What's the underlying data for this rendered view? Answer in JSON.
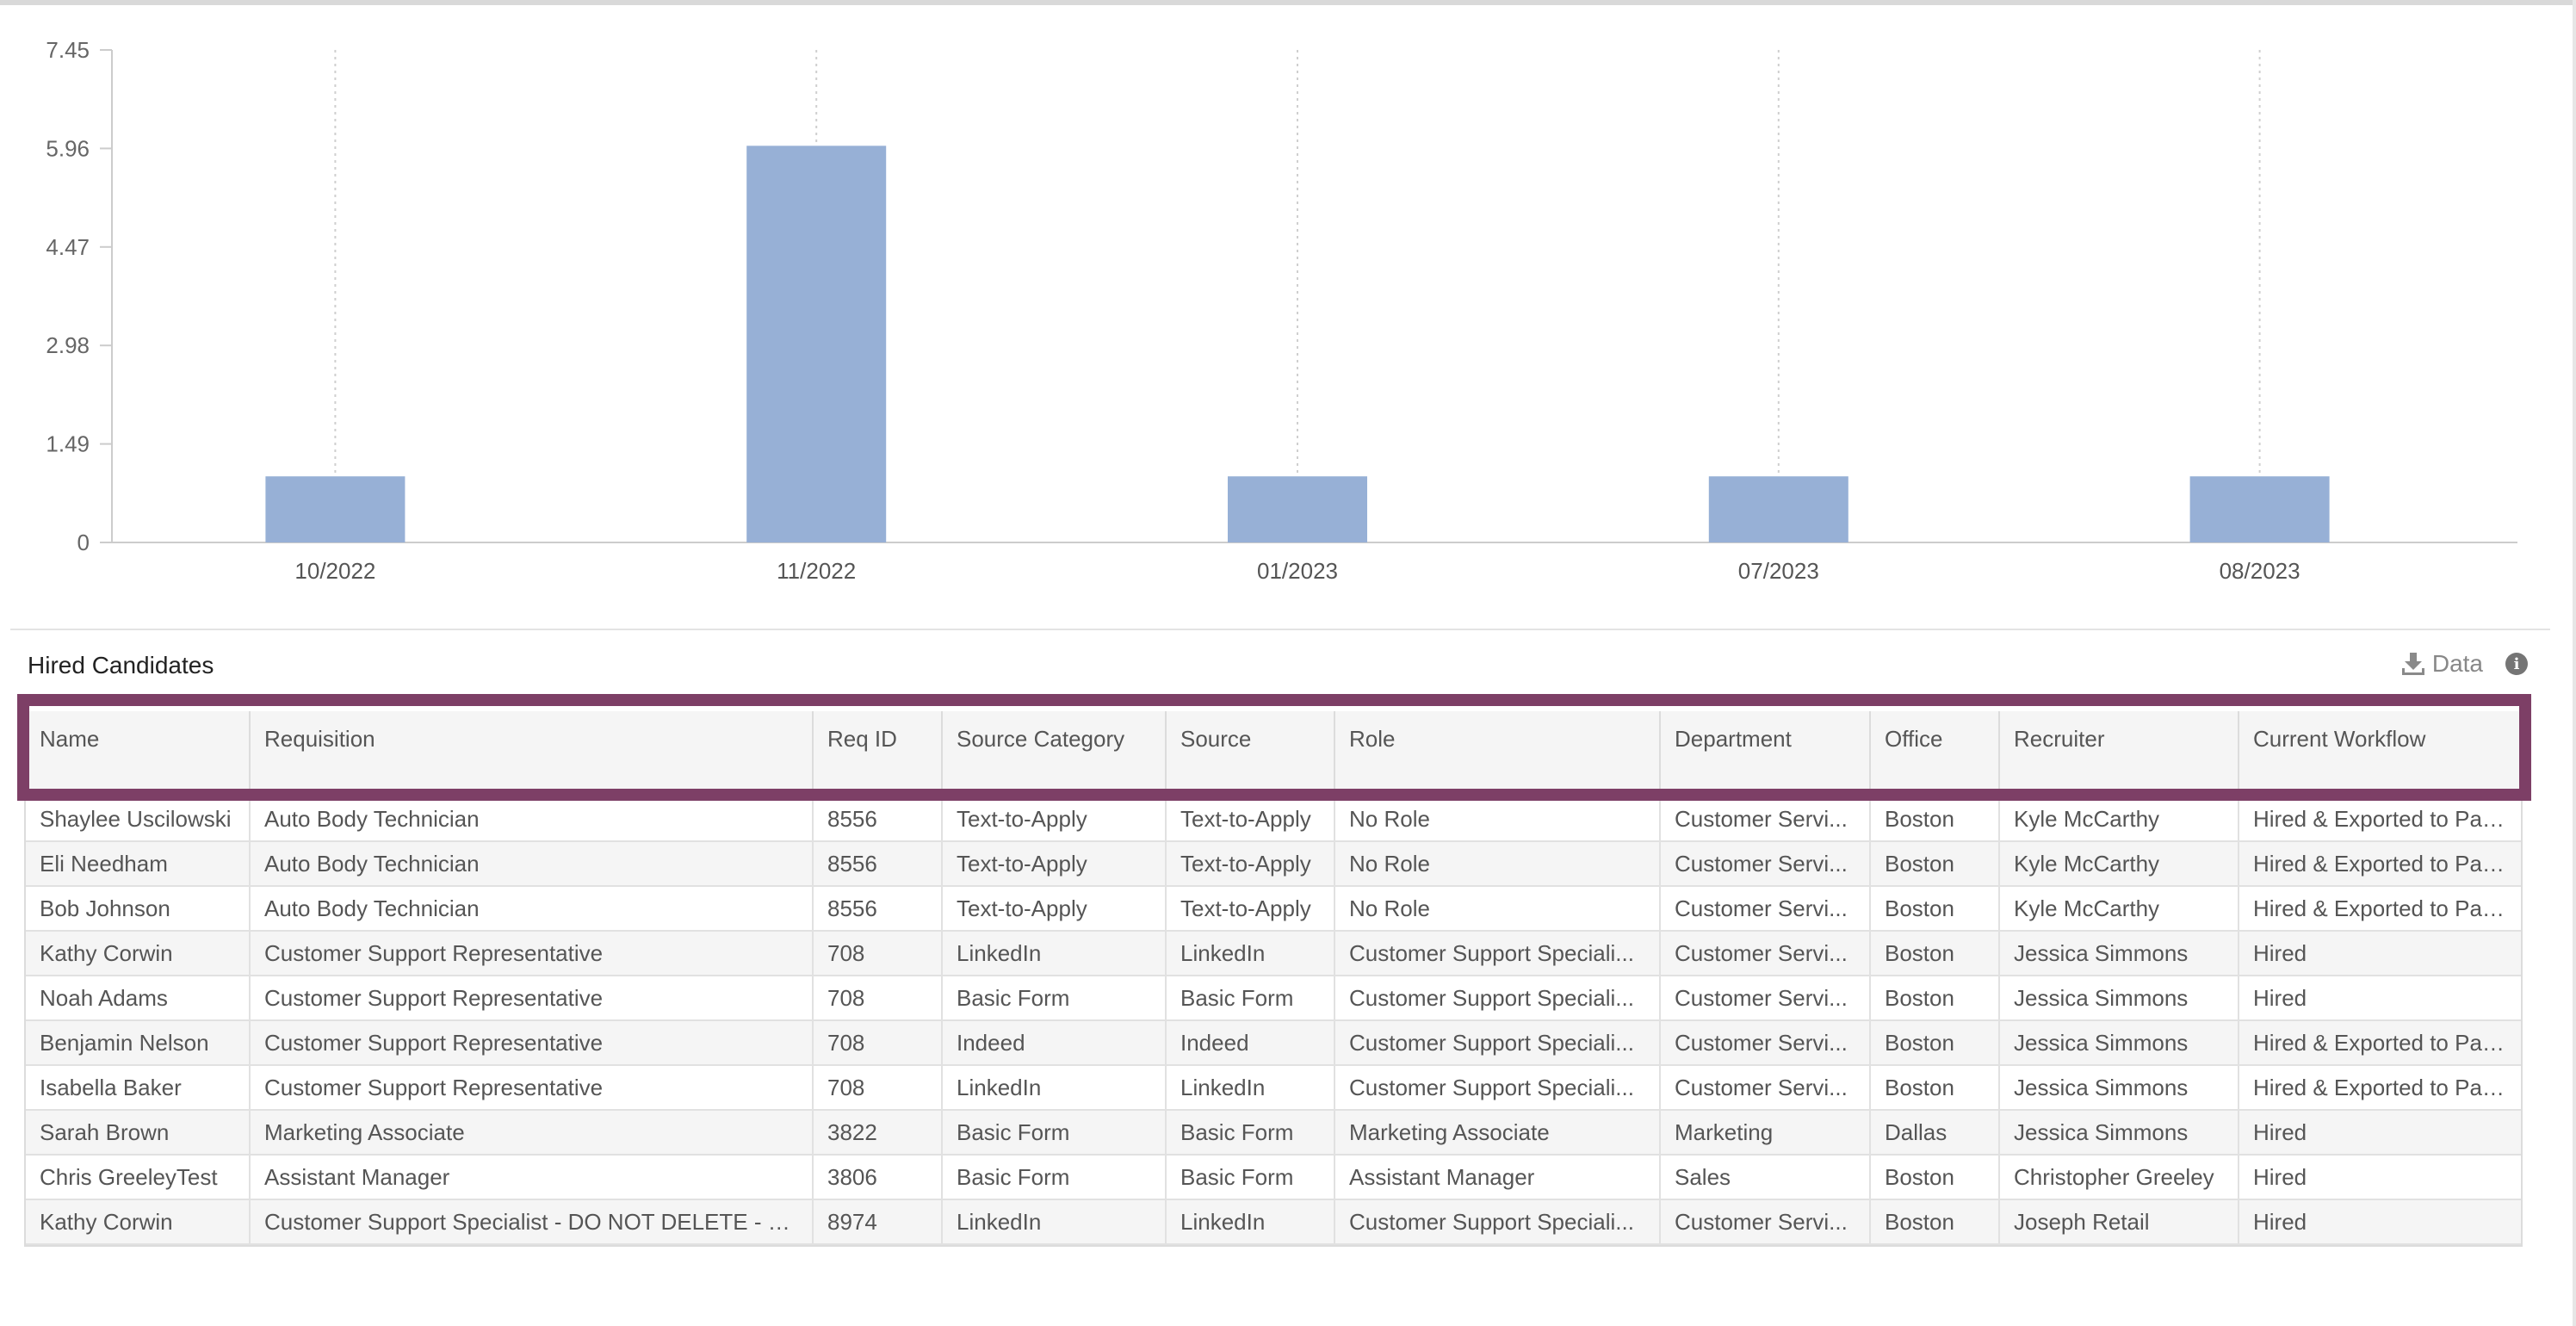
{
  "chart_data": {
    "type": "bar",
    "categories": [
      "10/2022",
      "11/2022",
      "01/2023",
      "07/2023",
      "08/2023"
    ],
    "values": [
      1,
      6,
      1,
      1,
      1
    ],
    "yticks": [
      "0",
      "1.49",
      "2.98",
      "4.47",
      "5.96",
      "7.45"
    ],
    "ylim": [
      0,
      7.45
    ],
    "grid": "vertical dotted",
    "bar_color": "#97b0d6"
  },
  "table": {
    "title": "Hired Candidates",
    "data_label": "Data",
    "columns": [
      "Name",
      "Requisition",
      "Req ID",
      "Source Category",
      "Source",
      "Role",
      "Department",
      "Office",
      "Recruiter",
      "Current Workflow"
    ],
    "rows": [
      [
        "Shaylee Uscilowski",
        "Auto Body Technician",
        "8556",
        "Text-to-Apply",
        "Text-to-Apply",
        "No Role",
        "Customer Servi...",
        "Boston",
        "Kyle McCarthy",
        "Hired & Exported to Payr..."
      ],
      [
        "Eli Needham",
        "Auto Body Technician",
        "8556",
        "Text-to-Apply",
        "Text-to-Apply",
        "No Role",
        "Customer Servi...",
        "Boston",
        "Kyle McCarthy",
        "Hired & Exported to Payr..."
      ],
      [
        "Bob Johnson",
        "Auto Body Technician",
        "8556",
        "Text-to-Apply",
        "Text-to-Apply",
        "No Role",
        "Customer Servi...",
        "Boston",
        "Kyle McCarthy",
        "Hired & Exported to Payr..."
      ],
      [
        "Kathy Corwin",
        "Customer Support Representative",
        "708",
        "LinkedIn",
        "LinkedIn",
        "Customer Support Speciali...",
        "Customer Servi...",
        "Boston",
        "Jessica Simmons",
        "Hired"
      ],
      [
        "Noah Adams",
        "Customer Support Representative",
        "708",
        "Basic Form",
        "Basic Form",
        "Customer Support Speciali...",
        "Customer Servi...",
        "Boston",
        "Jessica Simmons",
        "Hired"
      ],
      [
        "Benjamin Nelson",
        "Customer Support Representative",
        "708",
        "Indeed",
        "Indeed",
        "Customer Support Speciali...",
        "Customer Servi...",
        "Boston",
        "Jessica Simmons",
        "Hired & Exported to Payr..."
      ],
      [
        "Isabella Baker",
        "Customer Support Representative",
        "708",
        "LinkedIn",
        "LinkedIn",
        "Customer Support Speciali...",
        "Customer Servi...",
        "Boston",
        "Jessica Simmons",
        "Hired & Exported to Payr..."
      ],
      [
        "Sarah Brown",
        "Marketing Associate",
        "3822",
        "Basic Form",
        "Basic Form",
        "Marketing Associate",
        "Marketing",
        "Dallas",
        "Jessica Simmons",
        "Hired"
      ],
      [
        "Chris GreeleyTest",
        "Assistant Manager",
        "3806",
        "Basic Form",
        "Basic Form",
        "Assistant Manager",
        "Sales",
        "Boston",
        "Christopher Greeley",
        "Hired"
      ],
      [
        "Kathy Corwin",
        "Customer Support Specialist - DO NOT DELETE - J.S.",
        "8974",
        "LinkedIn",
        "LinkedIn",
        "Customer Support Speciali...",
        "Customer Servi...",
        "Boston",
        "Joseph Retail",
        "Hired"
      ]
    ]
  }
}
